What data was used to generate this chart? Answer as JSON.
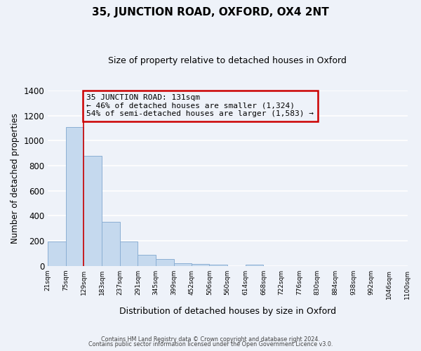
{
  "title": "35, JUNCTION ROAD, OXFORD, OX4 2NT",
  "subtitle": "Size of property relative to detached houses in Oxford",
  "xlabel": "Distribution of detached houses by size in Oxford",
  "ylabel": "Number of detached properties",
  "bar_color": "#c5d9ee",
  "bar_edge_color": "#8bafd4",
  "background_color": "#eef2f9",
  "grid_color": "#ffffff",
  "annotation_box_edge": "#cc0000",
  "annotation_line_color": "#cc0000",
  "annotation_line1": "35 JUNCTION ROAD: 131sqm",
  "annotation_line2": "← 46% of detached houses are smaller (1,324)",
  "annotation_line3": "54% of semi-detached houses are larger (1,583) →",
  "property_marker_bin_index": 2,
  "footer_line1": "Contains HM Land Registry data © Crown copyright and database right 2024.",
  "footer_line2": "Contains public sector information licensed under the Open Government Licence v3.0.",
  "bin_edges": [
    21,
    75,
    129,
    183,
    237,
    291,
    345,
    399,
    452,
    506,
    560,
    614,
    668,
    722,
    776,
    830,
    884,
    938,
    992,
    1046,
    1100
  ],
  "counts": [
    195,
    1110,
    880,
    350,
    195,
    90,
    55,
    20,
    15,
    10,
    0,
    10,
    0,
    0,
    0,
    0,
    0,
    0,
    0,
    0
  ],
  "ylim": [
    0,
    1400
  ],
  "yticks": [
    0,
    200,
    400,
    600,
    800,
    1000,
    1200,
    1400
  ]
}
